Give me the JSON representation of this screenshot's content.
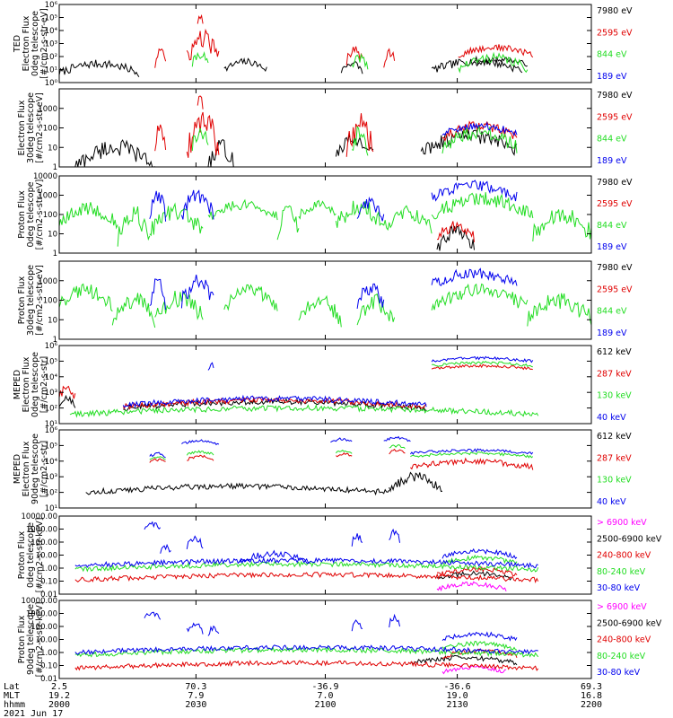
{
  "colors": {
    "black": "#000000",
    "red": "#e00000",
    "green": "#22dd22",
    "blue": "#0000ee",
    "magenta": "#ff00ff"
  },
  "chart_data": [
    {
      "type": "line",
      "ylabel": [
        "TED",
        "Electron Flux",
        "0deg telescope",
        "[#/cm2-s-str-eV]"
      ],
      "yscale": "log",
      "ylim_exp": [
        0,
        6
      ],
      "tick_labels": [
        "10⁰",
        "10¹",
        "10²",
        "10³",
        "10⁴",
        "10⁵",
        "10⁶"
      ],
      "series": [
        {
          "name": "7980 eV",
          "color": "black",
          "bursts": [
            [
              0.0,
              0.15,
              1.1,
              0.35
            ],
            [
              0.31,
              0.39,
              1.3,
              0.3
            ],
            [
              0.53,
              0.57,
              1.2,
              0.3
            ],
            [
              0.7,
              0.87,
              1.3,
              0.35
            ],
            [
              0.78,
              0.88,
              1.6,
              0.2
            ]
          ]
        },
        {
          "name": "2595 eV",
          "color": "red",
          "bursts": [
            [
              0.18,
              0.2,
              2.0,
              0.6
            ],
            [
              0.24,
              0.3,
              2.6,
              0.8
            ],
            [
              0.26,
              0.27,
              4.8,
              0.3
            ],
            [
              0.54,
              0.57,
              2.2,
              0.5
            ],
            [
              0.61,
              0.63,
              2.0,
              0.5
            ],
            [
              0.75,
              0.89,
              2.4,
              0.3
            ]
          ]
        },
        {
          "name": "844 eV",
          "color": "green",
          "bursts": [
            [
              0.25,
              0.28,
              1.8,
              0.4
            ],
            [
              0.55,
              0.58,
              1.5,
              0.4
            ],
            [
              0.75,
              0.88,
              1.5,
              0.4
            ]
          ]
        },
        {
          "name": "189 eV",
          "color": "blue",
          "bursts": []
        }
      ]
    },
    {
      "type": "line",
      "ylabel": [
        "Electron Flux",
        "30deg telescope",
        "[#/cm2-s-str-eV]"
      ],
      "yscale": "log",
      "ylim_exp": [
        0,
        4
      ],
      "tick_labels": [
        "1",
        "10",
        "100",
        "1000"
      ],
      "series": [
        {
          "name": "7980 eV",
          "color": "black",
          "bursts": [
            [
              0.03,
              0.18,
              0.5,
              0.5
            ],
            [
              0.28,
              0.33,
              0.5,
              0.5
            ],
            [
              0.52,
              0.59,
              1.0,
              0.4
            ],
            [
              0.68,
              0.86,
              1.2,
              0.4
            ]
          ]
        },
        {
          "name": "2595 eV",
          "color": "red",
          "bursts": [
            [
              0.18,
              0.2,
              1.5,
              0.5
            ],
            [
              0.24,
              0.3,
              1.6,
              0.8
            ],
            [
              0.26,
              0.27,
              3.4,
              0.3
            ],
            [
              0.54,
              0.59,
              1.5,
              0.7
            ],
            [
              0.72,
              0.86,
              1.8,
              0.3
            ]
          ]
        },
        {
          "name": "844 eV",
          "color": "green",
          "bursts": [
            [
              0.25,
              0.28,
              1.5,
              0.5
            ],
            [
              0.55,
              0.58,
              1.3,
              0.5
            ],
            [
              0.72,
              0.86,
              1.4,
              0.4
            ]
          ]
        },
        {
          "name": "189 eV",
          "color": "blue",
          "bursts": [
            [
              0.72,
              0.86,
              1.9,
              0.2
            ]
          ]
        }
      ]
    },
    {
      "type": "line",
      "ylabel": [
        "Proton Flux",
        "0deg telescope",
        "[#/cm2-s-str-eV]"
      ],
      "yscale": "log",
      "ylim_exp": [
        0,
        4
      ],
      "tick_labels": [
        "1",
        "10",
        "100",
        "1000",
        "10000"
      ],
      "series": [
        {
          "name": "7980 eV",
          "color": "black",
          "bursts": [
            [
              0.71,
              0.78,
              0.7,
              0.4
            ]
          ]
        },
        {
          "name": "2595 eV",
          "color": "red",
          "bursts": [
            [
              0.71,
              0.78,
              1.1,
              0.3
            ]
          ]
        },
        {
          "name": "844 eV",
          "color": "green",
          "bursts": [
            [
              0.0,
              0.11,
              1.9,
              0.4
            ],
            [
              0.11,
              0.17,
              1.4,
              0.6
            ],
            [
              0.17,
              0.27,
              1.6,
              0.5
            ],
            [
              0.28,
              0.41,
              2.2,
              0.3
            ],
            [
              0.41,
              0.45,
              1.6,
              0.5
            ],
            [
              0.45,
              0.52,
              2.2,
              0.3
            ],
            [
              0.52,
              0.61,
              1.9,
              0.5
            ],
            [
              0.61,
              0.7,
              1.7,
              0.4
            ],
            [
              0.7,
              0.89,
              2.4,
              0.4
            ],
            [
              0.89,
              1.0,
              1.5,
              0.5
            ]
          ]
        },
        {
          "name": "189 eV",
          "color": "blue",
          "bursts": [
            [
              0.17,
              0.2,
              2.4,
              0.5
            ],
            [
              0.23,
              0.29,
              2.5,
              0.5
            ],
            [
              0.56,
              0.61,
              2.2,
              0.4
            ],
            [
              0.7,
              0.86,
              3.2,
              0.3
            ]
          ]
        }
      ]
    },
    {
      "type": "line",
      "ylabel": [
        "Proton Flux",
        "30deg telescope",
        "[#/cm2-s-str-eV]"
      ],
      "yscale": "log",
      "ylim_exp": [
        0,
        4
      ],
      "tick_labels": [
        "1",
        "10",
        "100",
        "1000"
      ],
      "series": [
        {
          "name": "7980 eV",
          "color": "black",
          "bursts": []
        },
        {
          "name": "2595 eV",
          "color": "red",
          "bursts": []
        },
        {
          "name": "844 eV",
          "color": "green",
          "bursts": [
            [
              0.0,
              0.1,
              2.1,
              0.4
            ],
            [
              0.1,
              0.18,
              1.5,
              0.5
            ],
            [
              0.18,
              0.27,
              1.6,
              0.5
            ],
            [
              0.31,
              0.41,
              2.1,
              0.4
            ],
            [
              0.45,
              0.53,
              1.5,
              0.5
            ],
            [
              0.56,
              0.63,
              1.4,
              0.5
            ],
            [
              0.7,
              0.88,
              2.1,
              0.4
            ],
            [
              0.88,
              1.0,
              1.5,
              0.5
            ]
          ]
        },
        {
          "name": "189 eV",
          "color": "blue",
          "bursts": [
            [
              0.17,
              0.2,
              2.3,
              0.5
            ],
            [
              0.23,
              0.29,
              2.4,
              0.5
            ],
            [
              0.56,
              0.61,
              2.2,
              0.4
            ],
            [
              0.7,
              0.86,
              3.1,
              0.3
            ]
          ]
        }
      ]
    },
    {
      "type": "line",
      "ylabel": [
        "MEPED",
        "Electron Flux",
        "0deg telescope",
        "[#/cm2-s-str]"
      ],
      "yscale": "log",
      "ylim_exp": [
        1,
        6
      ],
      "tick_labels": [
        "10¹",
        "10²",
        "10³",
        "10⁴",
        "10⁵",
        "10⁶"
      ],
      "series": [
        {
          "name": "612 keV",
          "color": "black",
          "bursts": [
            [
              0.0,
              0.03,
              2.4,
              0.3
            ],
            [
              0.12,
              0.69,
              2.2,
              0.2
            ]
          ]
        },
        {
          "name": "287 keV",
          "color": "red",
          "bursts": [
            [
              0.0,
              0.03,
              3.0,
              0.3
            ],
            [
              0.12,
              0.69,
              2.3,
              0.2
            ],
            [
              0.7,
              0.89,
              4.6,
              0.1
            ]
          ]
        },
        {
          "name": "130 keV",
          "color": "green",
          "bursts": [
            [
              0.02,
              0.9,
              1.8,
              0.2
            ],
            [
              0.7,
              0.89,
              4.8,
              0.1
            ]
          ]
        },
        {
          "name": "40 keV",
          "color": "blue",
          "bursts": [
            [
              0.12,
              0.69,
              2.4,
              0.2
            ],
            [
              0.28,
              0.29,
              4.6,
              0.3
            ],
            [
              0.7,
              0.89,
              5.1,
              0.1
            ]
          ]
        }
      ]
    },
    {
      "type": "line",
      "ylabel": [
        "MEPED",
        "Electron Flux",
        "90deg telescope",
        "[#/cm2-s-str]"
      ],
      "yscale": "log",
      "ylim_exp": [
        1,
        6
      ],
      "tick_labels": [
        "10¹",
        "10²",
        "10³",
        "10⁴",
        "10⁵",
        "10⁶"
      ],
      "series": [
        {
          "name": "612 keV",
          "color": "black",
          "bursts": [
            [
              0.05,
              0.62,
              2.2,
              0.2
            ],
            [
              0.62,
              0.72,
              2.6,
              0.4
            ]
          ]
        },
        {
          "name": "287 keV",
          "color": "red",
          "bursts": [
            [
              0.17,
              0.2,
              4.0,
              0.1
            ],
            [
              0.24,
              0.29,
              4.2,
              0.1
            ],
            [
              0.52,
              0.55,
              4.4,
              0.1
            ],
            [
              0.62,
              0.65,
              4.6,
              0.1
            ],
            [
              0.66,
              0.89,
              3.8,
              0.2
            ]
          ]
        },
        {
          "name": "130 keV",
          "color": "green",
          "bursts": [
            [
              0.17,
              0.2,
              4.2,
              0.1
            ],
            [
              0.24,
              0.29,
              4.5,
              0.1
            ],
            [
              0.52,
              0.55,
              4.6,
              0.1
            ],
            [
              0.62,
              0.65,
              4.9,
              0.1
            ],
            [
              0.66,
              0.89,
              4.4,
              0.1
            ]
          ]
        },
        {
          "name": "40 keV",
          "color": "blue",
          "bursts": [
            [
              0.17,
              0.2,
              4.4,
              0.1
            ],
            [
              0.23,
              0.3,
              5.2,
              0.1
            ],
            [
              0.51,
              0.55,
              5.3,
              0.1
            ],
            [
              0.61,
              0.66,
              5.4,
              0.1
            ],
            [
              0.66,
              0.89,
              4.6,
              0.1
            ]
          ]
        }
      ]
    },
    {
      "type": "line",
      "ylabel": [
        "Proton Flux",
        "0deg telescope",
        "[#/cm2-s-str-keV]"
      ],
      "yscale": "log",
      "ylim_exp": [
        -2,
        4
      ],
      "tick_labels": [
        "0.01",
        "0.10",
        "1.00",
        "10.00",
        "100.00",
        "1000.00",
        "10000.00"
      ],
      "series": [
        {
          "name": "> 6900 keV",
          "color": "magenta",
          "bursts": [
            [
              0.71,
              0.84,
              -1.4,
              0.2
            ]
          ]
        },
        {
          "name": "2500-6900 keV",
          "color": "black",
          "bursts": [
            [
              0.71,
              0.85,
              -0.6,
              0.2
            ]
          ]
        },
        {
          "name": "240-800 keV",
          "color": "red",
          "bursts": [
            [
              0.03,
              0.9,
              -0.7,
              0.2
            ],
            [
              0.71,
              0.86,
              -0.3,
              0.2
            ]
          ]
        },
        {
          "name": "80-240 keV",
          "color": "green",
          "bursts": [
            [
              0.03,
              0.9,
              0.1,
              0.2
            ],
            [
              0.72,
              0.86,
              0.6,
              0.2
            ]
          ]
        },
        {
          "name": "30-80 keV",
          "color": "blue",
          "bursts": [
            [
              0.03,
              0.9,
              0.4,
              0.2
            ],
            [
              0.16,
              0.19,
              3.2,
              0.2
            ],
            [
              0.19,
              0.21,
              1.4,
              0.3
            ],
            [
              0.24,
              0.27,
              2.0,
              0.3
            ],
            [
              0.34,
              0.47,
              0.8,
              0.3
            ],
            [
              0.55,
              0.57,
              2.2,
              0.3
            ],
            [
              0.62,
              0.64,
              2.5,
              0.3
            ],
            [
              0.72,
              0.86,
              1.1,
              0.2
            ]
          ]
        }
      ]
    },
    {
      "type": "line",
      "ylabel": [
        "Proton Flux",
        "90deg telescope",
        "[#/cm2-s-str-keV]"
      ],
      "yscale": "log",
      "ylim_exp": [
        -2,
        4
      ],
      "tick_labels": [
        "0.01",
        "0.10",
        "1.00",
        "10.00",
        "100.00",
        "1000.00",
        "10000.00"
      ],
      "series": [
        {
          "name": "> 6900 keV",
          "color": "magenta",
          "bursts": [
            [
              0.72,
              0.84,
              -1.3,
              0.2
            ]
          ]
        },
        {
          "name": "2500-6900 keV",
          "color": "black",
          "bursts": [
            [
              0.66,
              0.86,
              -0.6,
              0.2
            ]
          ]
        },
        {
          "name": "240-800 keV",
          "color": "red",
          "bursts": [
            [
              0.03,
              0.9,
              -1.0,
              0.2
            ],
            [
              0.72,
              0.86,
              -0.1,
              0.2
            ]
          ]
        },
        {
          "name": "80-240 keV",
          "color": "green",
          "bursts": [
            [
              0.03,
              0.9,
              0.0,
              0.2
            ],
            [
              0.72,
              0.86,
              0.5,
              0.2
            ]
          ]
        },
        {
          "name": "30-80 keV",
          "color": "blue",
          "bursts": [
            [
              0.03,
              0.9,
              0.2,
              0.2
            ],
            [
              0.16,
              0.19,
              2.8,
              0.2
            ],
            [
              0.24,
              0.27,
              1.9,
              0.3
            ],
            [
              0.28,
              0.3,
              1.6,
              0.3
            ],
            [
              0.55,
              0.57,
              2.0,
              0.3
            ],
            [
              0.62,
              0.64,
              2.4,
              0.3
            ],
            [
              0.72,
              0.86,
              1.2,
              0.2
            ]
          ]
        }
      ]
    }
  ],
  "x_axis": {
    "row_labels": [
      "Lat",
      "MLT",
      "hhmm"
    ],
    "ticks": [
      {
        "lat": "2.5",
        "mlt": "19.2",
        "hhmm": "2000"
      },
      {
        "lat": "70.3",
        "mlt": "7.9",
        "hhmm": "2030"
      },
      {
        "lat": "-36.9",
        "mlt": "7.0",
        "hhmm": "2100"
      },
      {
        "lat": "-36.6",
        "mlt": "19.0",
        "hhmm": "2130"
      },
      {
        "lat": "69.3",
        "mlt": "16.8",
        "hhmm": "2200"
      }
    ],
    "date": "2021 Jun 17"
  }
}
